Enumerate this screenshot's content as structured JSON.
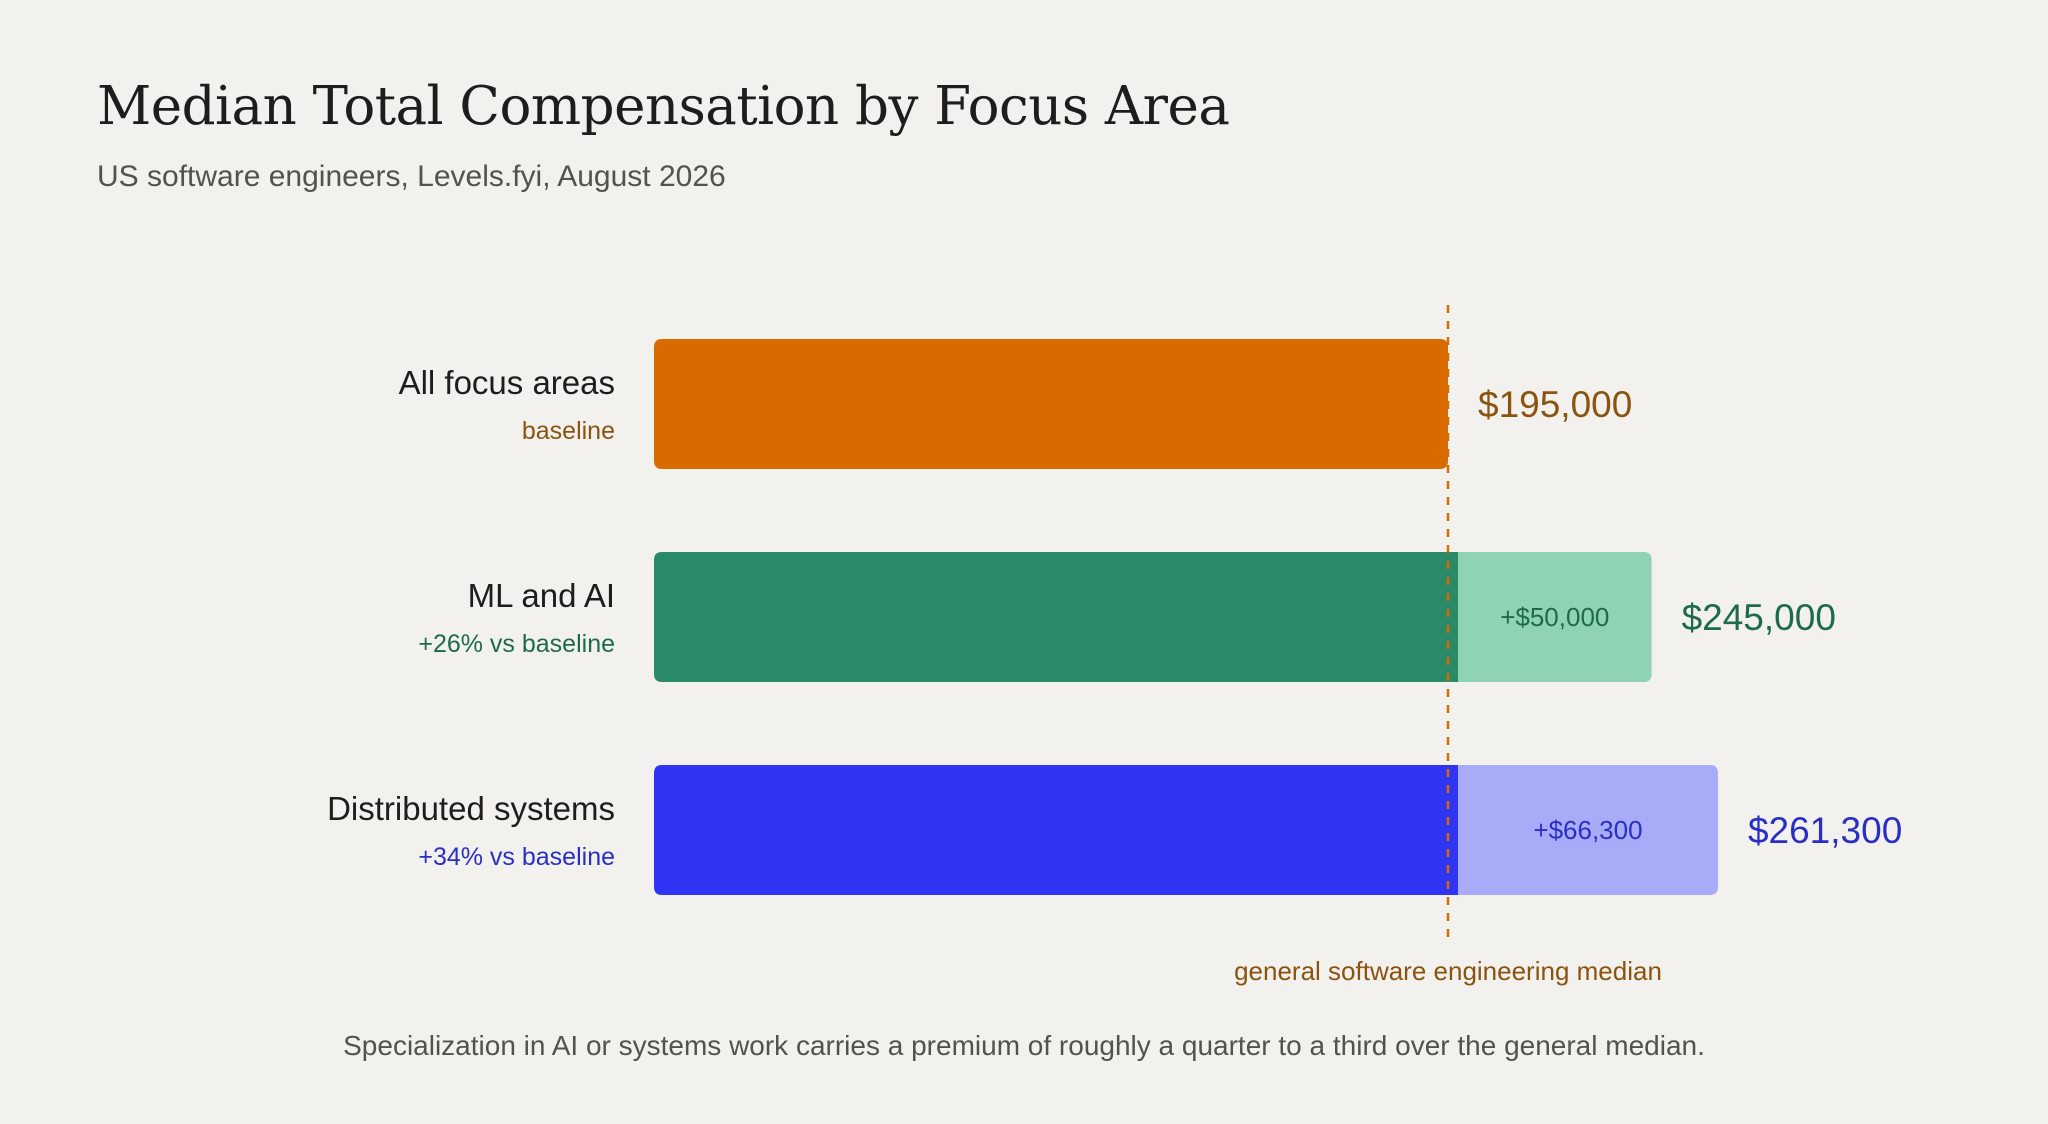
{
  "chart_data": {
    "type": "bar",
    "orientation": "horizontal",
    "stacked": true,
    "title": "Median Total Compensation by Focus Area",
    "subtitle": "US software engineers, Levels.fyi, August 2026",
    "categories": [
      {
        "name": "All focus areas",
        "note": "baseline",
        "baseline": 195000,
        "premium": 0,
        "total": 195000,
        "total_label": "$195,000",
        "premium_label": "",
        "color": "#d86b00",
        "light_color": "#d86b00",
        "text_color": "#8a5410"
      },
      {
        "name": "ML and AI",
        "note": "+26% vs baseline",
        "baseline": 195000,
        "premium": 50000,
        "total": 245000,
        "total_label": "$245,000",
        "premium_label": "+$50,000",
        "color": "#2b8a67",
        "light_color": "#8fd3b3",
        "text_color": "#1e6b4c"
      },
      {
        "name": "Distributed systems",
        "note": "+34% vs baseline",
        "baseline": 195000,
        "premium": 66300,
        "total": 261300,
        "total_label": "$261,300",
        "premium_label": "+$66,300",
        "color": "#2f35f2",
        "light_color": "#a8acf8",
        "text_color": "#2a2fc4"
      }
    ],
    "reference_line": {
      "value": 195000,
      "label": "general software engineering median",
      "color": "#d86b00"
    },
    "xlim": [
      0,
      261300
    ],
    "grid": false,
    "legend": "none",
    "footnote": "Specialization in AI or systems work carries a premium of roughly a quarter to a third over the general median."
  }
}
